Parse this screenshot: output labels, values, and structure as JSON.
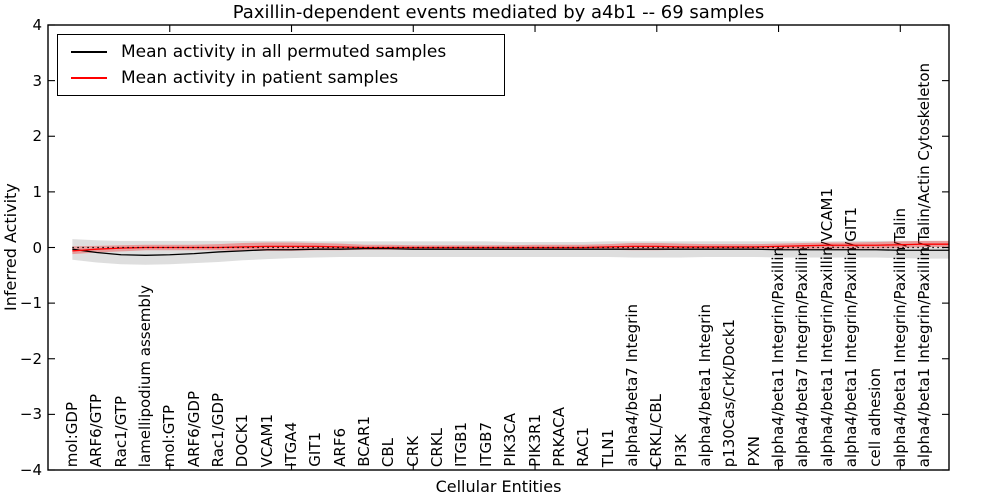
{
  "title": "Paxillin-dependent events mediated by a4b1 -- 69 samples",
  "axis": {
    "xlabel": "Cellular Entities",
    "ylabel": "Inferred Activity"
  },
  "legend": {
    "position": "upper-left",
    "items": [
      {
        "label": "Mean activity in all permuted samples",
        "color": "#000000"
      },
      {
        "label": "Mean activity in patient samples",
        "color": "#ff0000"
      }
    ]
  },
  "chart_data": {
    "type": "line",
    "title": "Paxillin-dependent events mediated by a4b1 -- 69 samples",
    "xlabel": "Cellular Entities",
    "ylabel": "Inferred Activity",
    "ylim": [
      -4,
      4
    ],
    "yticks": [
      4,
      3,
      2,
      1,
      0,
      -1,
      -2,
      -3,
      -4
    ],
    "x_major_tick_every": 5,
    "grid": false,
    "sample_count": 69,
    "categories": [
      "mol:GDP",
      "ARF6/GTP",
      "Rac1/GTP",
      "lamellipodium assembly",
      "mol:GTP",
      "ARF6/GDP",
      "Rac1/GDP",
      "DOCK1",
      "VCAM1",
      "ITGA4",
      "GIT1",
      "ARF6",
      "BCAR1",
      "CBL",
      "CRK",
      "CRKL",
      "ITGB1",
      "ITGB7",
      "PIK3CA",
      "PIK3R1",
      "PRKACA",
      "RAC1",
      "TLN1",
      "alpha4/beta7 Integrin",
      "CRKL/CBL",
      "PI3K",
      "alpha4/beta1 Integrin",
      "p130Cas/Crk/Dock1",
      "PXN",
      "alpha4/beta1 Integrin/Paxillin",
      "alpha4/beta7 Integrin/Paxillin",
      "alpha4/beta1 Integrin/Paxillin/VCAM1",
      "alpha4/beta1 Integrin/Paxillin/GIT1",
      "cell adhesion",
      "alpha4/beta1 Integrin/Paxillin/Talin",
      "alpha4/beta1 Integrin/Paxillin/Talin/Actin Cytoskeleton"
    ],
    "series": [
      {
        "name": "Mean activity in all permuted samples",
        "color": "#000000",
        "band_color": "rgba(0,0,0,0.13)",
        "values": [
          -0.03,
          -0.09,
          -0.13,
          -0.14,
          -0.13,
          -0.11,
          -0.08,
          -0.06,
          -0.04,
          -0.04,
          -0.03,
          -0.03,
          -0.02,
          -0.02,
          -0.03,
          -0.03,
          -0.03,
          -0.03,
          -0.03,
          -0.03,
          -0.03,
          -0.03,
          -0.03,
          -0.03,
          -0.03,
          -0.03,
          -0.03,
          -0.03,
          -0.03,
          -0.04,
          -0.04,
          -0.04,
          -0.04,
          -0.04,
          -0.05,
          -0.05
        ],
        "upper": [
          0.15,
          0.13,
          0.12,
          0.12,
          0.12,
          0.12,
          0.12,
          0.12,
          0.12,
          0.12,
          0.11,
          0.11,
          0.11,
          0.11,
          0.11,
          0.11,
          0.11,
          0.11,
          0.1,
          0.1,
          0.1,
          0.1,
          0.11,
          0.11,
          0.11,
          0.11,
          0.11,
          0.11,
          0.11,
          0.11,
          0.11,
          0.11,
          0.12,
          0.12,
          0.12,
          0.12
        ],
        "lower": [
          -0.22,
          -0.27,
          -0.3,
          -0.31,
          -0.3,
          -0.28,
          -0.26,
          -0.23,
          -0.21,
          -0.19,
          -0.18,
          -0.17,
          -0.17,
          -0.17,
          -0.17,
          -0.17,
          -0.17,
          -0.17,
          -0.17,
          -0.17,
          -0.17,
          -0.17,
          -0.17,
          -0.18,
          -0.18,
          -0.18,
          -0.17,
          -0.17,
          -0.17,
          -0.18,
          -0.18,
          -0.18,
          -0.18,
          -0.18,
          -0.19,
          -0.2
        ]
      },
      {
        "name": "Mean activity in patient samples",
        "color": "#ff0000",
        "band_color": "rgba(255,0,0,0.30)",
        "values": [
          -0.06,
          -0.03,
          -0.01,
          0.0,
          0.0,
          0.0,
          0.0,
          0.01,
          0.02,
          0.02,
          0.02,
          0.01,
          0.0,
          0.0,
          0.0,
          0.0,
          0.0,
          0.0,
          0.0,
          0.0,
          0.0,
          0.0,
          0.01,
          0.02,
          0.02,
          0.01,
          0.01,
          0.01,
          0.01,
          0.02,
          0.03,
          0.04,
          0.04,
          0.04,
          0.05,
          0.06
        ],
        "upper": [
          0.02,
          0.03,
          0.04,
          0.05,
          0.05,
          0.05,
          0.06,
          0.08,
          0.09,
          0.09,
          0.08,
          0.07,
          0.05,
          0.05,
          0.04,
          0.04,
          0.04,
          0.04,
          0.04,
          0.05,
          0.05,
          0.05,
          0.06,
          0.08,
          0.08,
          0.07,
          0.06,
          0.06,
          0.06,
          0.07,
          0.08,
          0.09,
          0.09,
          0.1,
          0.11,
          0.12
        ],
        "lower": [
          -0.12,
          -0.09,
          -0.07,
          -0.05,
          -0.05,
          -0.05,
          -0.05,
          -0.06,
          -0.06,
          -0.06,
          -0.05,
          -0.05,
          -0.04,
          -0.04,
          -0.04,
          -0.04,
          -0.04,
          -0.04,
          -0.04,
          -0.04,
          -0.04,
          -0.04,
          -0.04,
          -0.05,
          -0.05,
          -0.04,
          -0.04,
          -0.04,
          -0.04,
          -0.03,
          -0.03,
          -0.02,
          -0.02,
          -0.02,
          -0.01,
          0.01
        ]
      }
    ],
    "zero_line": {
      "style": "dotted",
      "color": "#000000",
      "y": 0
    }
  }
}
